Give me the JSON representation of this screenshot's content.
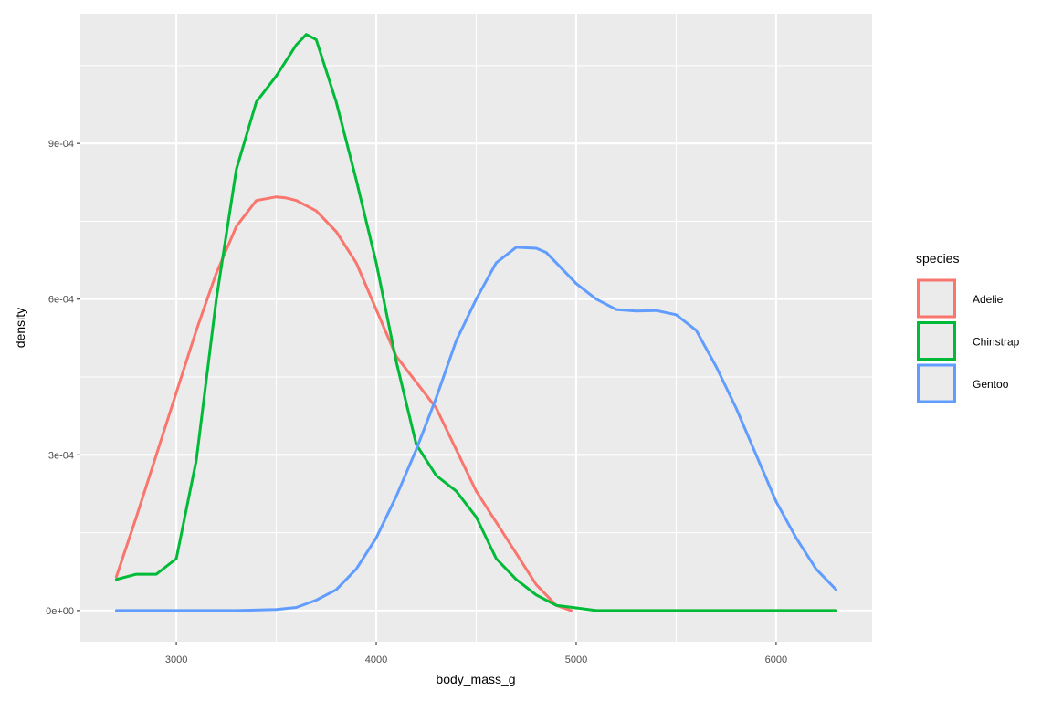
{
  "chart_data": {
    "type": "line",
    "title": "",
    "xlabel": "body_mass_g",
    "ylabel": "density",
    "xlim": [
      2520,
      6480
    ],
    "ylim": [
      -6e-05,
      0.00115
    ],
    "x_ticks": [
      3000,
      4000,
      5000,
      6000
    ],
    "x_tick_labels": [
      "3000",
      "4000",
      "5000",
      "6000"
    ],
    "x_minor_ticks": [
      2500,
      3500,
      4500,
      5500,
      6500
    ],
    "y_ticks": [
      0,
      0.0003,
      0.0006,
      0.0009
    ],
    "y_tick_labels": [
      "0e+00",
      "3e-04",
      "6e-04",
      "9e-04"
    ],
    "y_minor_ticks": [
      0.00015,
      0.00045,
      0.00075,
      0.00105
    ],
    "background": "#ebebeb",
    "grid": true,
    "legend": {
      "title": "species",
      "position": "right"
    },
    "series": [
      {
        "name": "Adelie",
        "color": "#F8766D",
        "x": [
          2700,
          2800,
          2900,
          3000,
          3100,
          3200,
          3300,
          3400,
          3500,
          3550,
          3600,
          3700,
          3800,
          3900,
          4000,
          4100,
          4200,
          4300,
          4400,
          4500,
          4600,
          4700,
          4800,
          4900,
          4975
        ],
        "y": [
          6.5e-05,
          0.00018,
          0.0003,
          0.00042,
          0.00054,
          0.00065,
          0.00074,
          0.00079,
          0.000797,
          0.000795,
          0.00079,
          0.00077,
          0.00073,
          0.00067,
          0.00058,
          0.00049,
          0.00044,
          0.00039,
          0.00031,
          0.00023,
          0.00017,
          0.00011,
          5e-05,
          1e-05,
          0.0
        ]
      },
      {
        "name": "Chinstrap",
        "color": "#00BA38",
        "x": [
          2700,
          2800,
          2900,
          3000,
          3100,
          3200,
          3300,
          3400,
          3500,
          3600,
          3650,
          3700,
          3800,
          3900,
          4000,
          4100,
          4200,
          4300,
          4400,
          4500,
          4600,
          4700,
          4800,
          4900,
          5000,
          5100,
          5200,
          5400,
          5600,
          5800,
          6000,
          6300
        ],
        "y": [
          6e-05,
          7e-05,
          7e-05,
          0.0001,
          0.00029,
          0.0006,
          0.00085,
          0.00098,
          0.00103,
          0.00109,
          0.00111,
          0.0011,
          0.00098,
          0.00083,
          0.00067,
          0.00048,
          0.00032,
          0.00026,
          0.00023,
          0.00018,
          0.0001,
          6e-05,
          3e-05,
          1e-05,
          5e-06,
          0.0,
          0.0,
          0.0,
          0.0,
          0.0,
          0.0,
          0.0
        ]
      },
      {
        "name": "Gentoo",
        "color": "#619CFF",
        "x": [
          2700,
          3000,
          3300,
          3500,
          3600,
          3700,
          3800,
          3900,
          4000,
          4100,
          4200,
          4300,
          4400,
          4500,
          4600,
          4700,
          4800,
          4850,
          4900,
          5000,
          5100,
          5200,
          5300,
          5400,
          5500,
          5600,
          5700,
          5800,
          5900,
          6000,
          6100,
          6200,
          6300
        ],
        "y": [
          0.0,
          0.0,
          0.0,
          2e-06,
          6e-06,
          2e-05,
          4e-05,
          8e-05,
          0.00014,
          0.00022,
          0.00031,
          0.00041,
          0.00052,
          0.0006,
          0.00067,
          0.0007,
          0.000698,
          0.00069,
          0.00067,
          0.00063,
          0.0006,
          0.00058,
          0.000577,
          0.000578,
          0.00057,
          0.00054,
          0.00047,
          0.00039,
          0.0003,
          0.00021,
          0.00014,
          8e-05,
          4e-05
        ]
      }
    ]
  }
}
